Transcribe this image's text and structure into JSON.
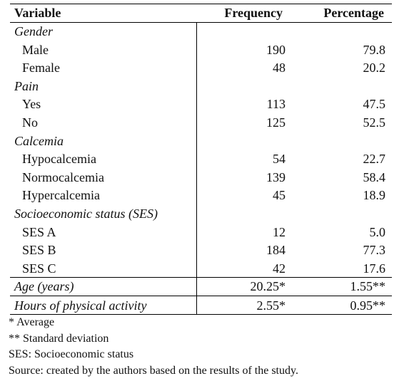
{
  "table": {
    "columns": [
      "Variable",
      "Frequency",
      "Percentage"
    ],
    "groups": [
      {
        "name": "Gender",
        "items": [
          {
            "label": "Male",
            "frequency": "190",
            "percentage": "79.8"
          },
          {
            "label": "Female",
            "frequency": "48",
            "percentage": "20.2"
          }
        ]
      },
      {
        "name": "Pain",
        "items": [
          {
            "label": "Yes",
            "frequency": "113",
            "percentage": "47.5"
          },
          {
            "label": "No",
            "frequency": "125",
            "percentage": "52.5"
          }
        ]
      },
      {
        "name": "Calcemia",
        "items": [
          {
            "label": "Hypocalcemia",
            "frequency": "54",
            "percentage": "22.7"
          },
          {
            "label": "Normocalcemia",
            "frequency": "139",
            "percentage": "58.4"
          },
          {
            "label": "Hypercalcemia",
            "frequency": "45",
            "percentage": "18.9"
          }
        ]
      },
      {
        "name": "Socioeconomic status (SES)",
        "items": [
          {
            "label": "SES A",
            "frequency": "12",
            "percentage": "5.0"
          },
          {
            "label": "SES B",
            "frequency": "184",
            "percentage": "77.3"
          },
          {
            "label": "SES C",
            "frequency": "42",
            "percentage": "17.6"
          }
        ]
      }
    ],
    "summary_rows": [
      {
        "label": "Age (years)",
        "frequency": "20.25*",
        "percentage": "1.55**"
      },
      {
        "label": "Hours of physical activity",
        "frequency": "2.55*",
        "percentage": "0.95**"
      }
    ]
  },
  "footnotes": [
    "* Average",
    "** Standard deviation",
    "SES: Socioeconomic status",
    "Source: created by the authors based on the results of the study."
  ]
}
